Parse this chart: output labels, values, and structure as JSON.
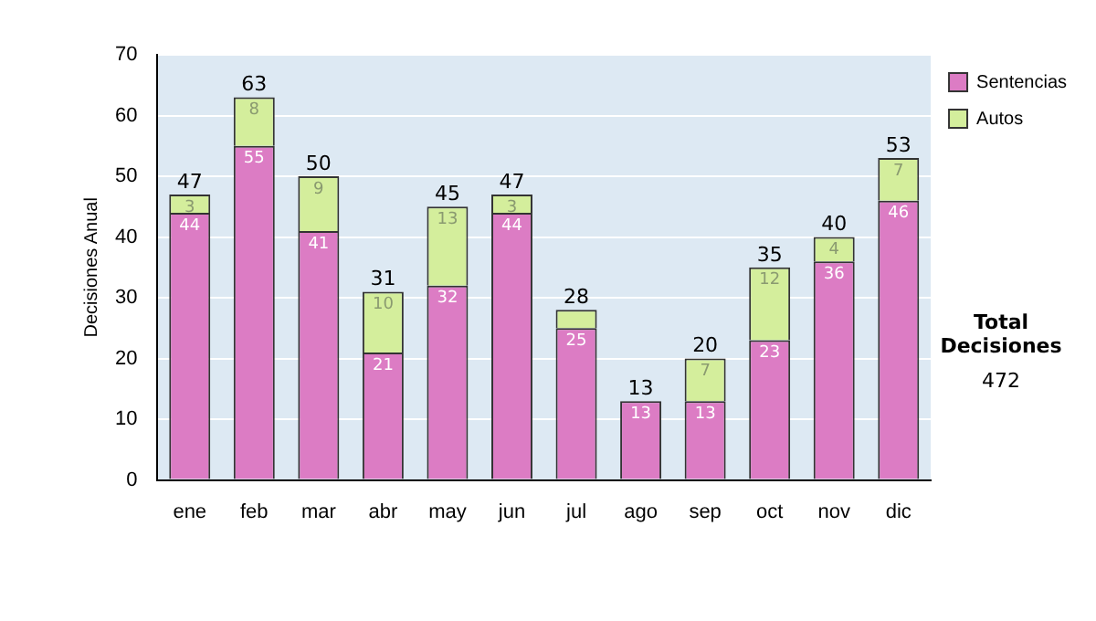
{
  "chart_data": {
    "type": "bar",
    "stacked": true,
    "ylabel": "Decisiones Anual",
    "categories": [
      "ene",
      "feb",
      "mar",
      "abr",
      "may",
      "jun",
      "jul",
      "ago",
      "sep",
      "oct",
      "nov",
      "dic"
    ],
    "series": [
      {
        "name": "Sentencias",
        "color": "#dc7cc4",
        "values": [
          44,
          55,
          41,
          21,
          32,
          44,
          25,
          13,
          13,
          23,
          36,
          46
        ],
        "value_labels": [
          "44",
          "55",
          "41",
          "21",
          "32",
          "44",
          "25",
          "13",
          "13",
          "23",
          "36",
          "46"
        ]
      },
      {
        "name": "Autos",
        "color": "#d4ee9c",
        "values": [
          3,
          8,
          9,
          10,
          13,
          3,
          3,
          0,
          7,
          12,
          4,
          7
        ],
        "value_labels": [
          "3",
          "8",
          "9",
          "10",
          "13",
          "3",
          null,
          null,
          "7",
          "12",
          "4",
          "7"
        ]
      }
    ],
    "totals": [
      "47",
      "63",
      "50",
      "31",
      "45",
      "47",
      "28",
      "13",
      "20",
      "35",
      "40",
      "53"
    ],
    "ylim": [
      0,
      70
    ],
    "yticks": [
      0,
      10,
      20,
      30,
      40,
      50,
      60,
      70
    ],
    "grid": "y",
    "legend": "right",
    "annotations": [
      "Total Decisiones",
      "472"
    ]
  }
}
